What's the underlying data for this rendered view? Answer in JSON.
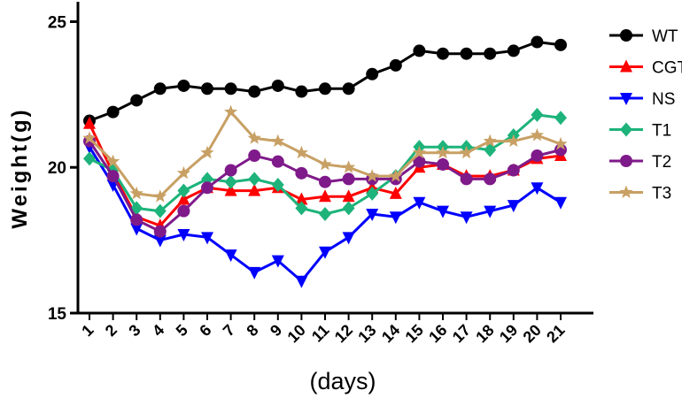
{
  "chart_data": {
    "type": "line",
    "title": "",
    "xlabel": "(days)",
    "ylabel": "Weight(g)",
    "ylim": [
      15,
      25.5
    ],
    "yticks": [
      "15",
      "20",
      "25"
    ],
    "ytick_values": [
      15,
      20,
      25
    ],
    "x": [
      1,
      2,
      3,
      4,
      5,
      6,
      7,
      8,
      9,
      10,
      11,
      12,
      13,
      14,
      15,
      16,
      17,
      18,
      19,
      20,
      21
    ],
    "xtick_labels": [
      "1",
      "2",
      "3",
      "4",
      "5",
      "6",
      "7",
      "8",
      "9",
      "10",
      "11",
      "12",
      "13",
      "14",
      "15",
      "16",
      "17",
      "18",
      "19",
      "20",
      "21"
    ],
    "grid": false,
    "legend_placement": "right",
    "series": [
      {
        "name": "WT",
        "color": "#000000",
        "marker": "circle",
        "values": [
          21.6,
          21.9,
          22.3,
          22.7,
          22.8,
          22.7,
          22.7,
          22.6,
          22.8,
          22.6,
          22.7,
          22.7,
          23.2,
          23.5,
          24.0,
          23.9,
          23.9,
          23.9,
          24.0,
          24.3,
          24.2
        ]
      },
      {
        "name": "CGT",
        "color": "#ff0000",
        "marker": "triangle-up",
        "values": [
          21.5,
          19.8,
          18.3,
          18.0,
          18.9,
          19.3,
          19.2,
          19.2,
          19.3,
          18.9,
          19.0,
          19.0,
          19.3,
          19.1,
          20.0,
          20.1,
          19.7,
          19.7,
          19.9,
          20.3,
          20.4
        ]
      },
      {
        "name": "NS",
        "color": "#0000ff",
        "marker": "triangle-down",
        "values": [
          20.7,
          19.4,
          17.9,
          17.5,
          17.7,
          17.6,
          17.0,
          16.4,
          16.8,
          16.1,
          17.1,
          17.6,
          18.4,
          18.3,
          18.8,
          18.5,
          18.3,
          18.5,
          18.7,
          19.3,
          18.8
        ]
      },
      {
        "name": "T1",
        "color": "#1db37a",
        "marker": "diamond",
        "values": [
          20.3,
          19.9,
          18.6,
          18.5,
          19.2,
          19.6,
          19.5,
          19.6,
          19.4,
          18.6,
          18.4,
          18.6,
          19.1,
          19.7,
          20.7,
          20.7,
          20.7,
          20.6,
          21.1,
          21.8,
          21.7
        ]
      },
      {
        "name": "T2",
        "color": "#7f1a8a",
        "marker": "circle",
        "values": [
          20.9,
          19.7,
          18.2,
          17.8,
          18.5,
          19.3,
          19.9,
          20.4,
          20.2,
          19.8,
          19.5,
          19.6,
          19.6,
          19.6,
          20.2,
          20.1,
          19.6,
          19.6,
          19.9,
          20.4,
          20.6
        ]
      },
      {
        "name": "T3",
        "color": "#c8a064",
        "marker": "star",
        "values": [
          21.0,
          20.2,
          19.1,
          19.0,
          19.8,
          20.5,
          21.9,
          21.0,
          20.9,
          20.5,
          20.1,
          20.0,
          19.7,
          19.7,
          20.5,
          20.5,
          20.5,
          20.9,
          20.9,
          21.1,
          20.8
        ]
      }
    ]
  }
}
